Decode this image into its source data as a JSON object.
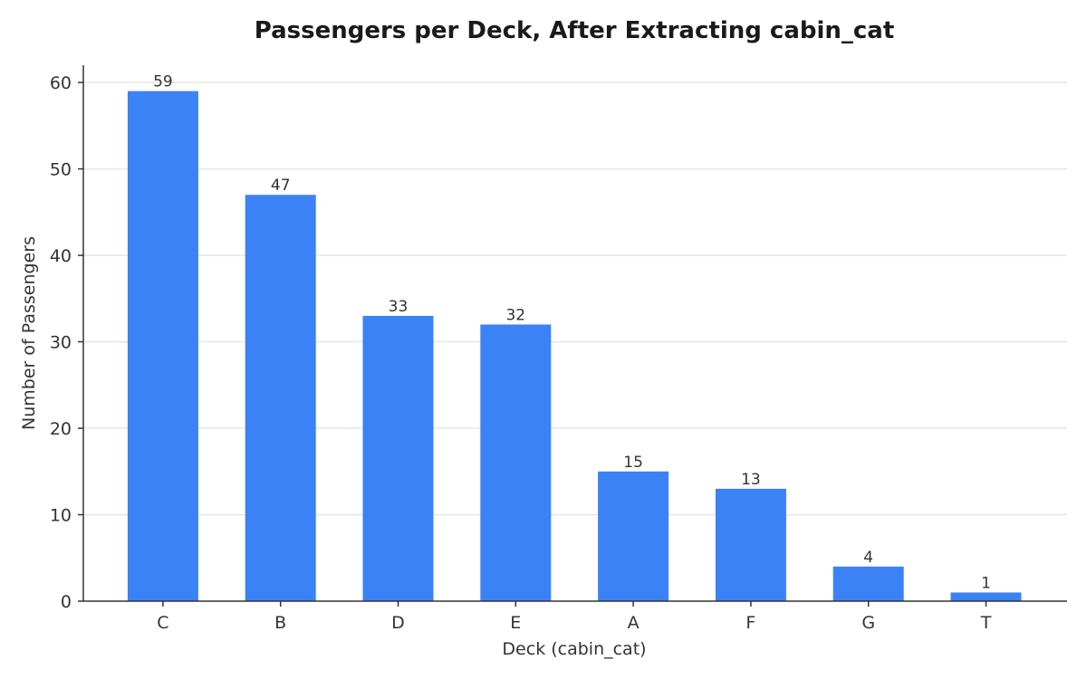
{
  "chart_data": {
    "type": "bar",
    "title": "Passengers per Deck, After Extracting cabin_cat",
    "xlabel": "Deck (cabin_cat)",
    "ylabel": "Number of Passengers",
    "categories": [
      "C",
      "B",
      "D",
      "E",
      "A",
      "F",
      "G",
      "T"
    ],
    "values": [
      59,
      47,
      33,
      32,
      15,
      13,
      4,
      1
    ],
    "ylim": [
      0,
      62
    ],
    "yticks": [
      0,
      10,
      20,
      30,
      40,
      50,
      60
    ],
    "grid": "horizontal",
    "data_labels": true,
    "bar_color": "#3b82f6"
  }
}
